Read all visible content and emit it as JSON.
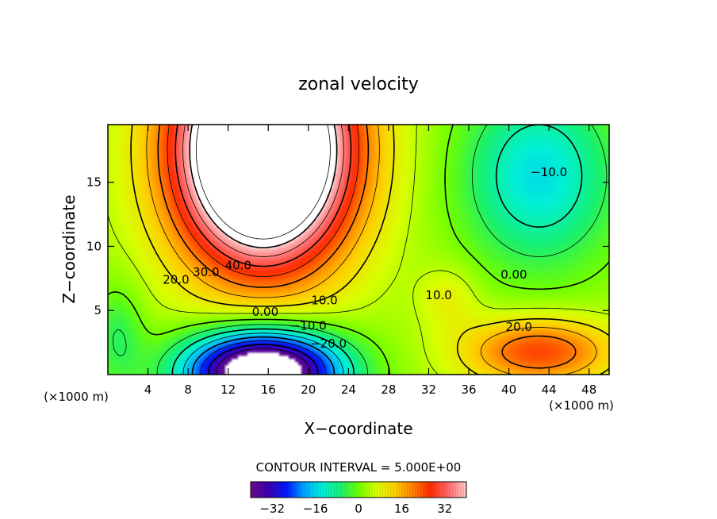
{
  "chart_data": {
    "type": "heatmap",
    "title": "zonal velocity",
    "xlabel": "X−coordinate",
    "ylabel": "Z−coordinate",
    "x_unit_left": "(×1000 m)",
    "x_unit_right": "(×1000 m)",
    "xlim": [
      0,
      50
    ],
    "ylim": [
      0,
      19.5
    ],
    "x_ticks": [
      4,
      8,
      12,
      16,
      20,
      24,
      28,
      32,
      36,
      40,
      44,
      48
    ],
    "y_ticks": [
      5,
      10,
      15
    ],
    "x_tick_labels": [
      "4",
      "8",
      "12",
      "16",
      "20",
      "24",
      "28",
      "32",
      "36",
      "40",
      "44",
      "48"
    ],
    "y_tick_labels": [
      "5",
      "10",
      "15"
    ],
    "contour_interval_text": "CONTOUR INTERVAL = 5.000E+00",
    "contour_interval": 5,
    "contour_labels": [
      {
        "text": "40.0",
        "x": 13.0,
        "y": 8.5
      },
      {
        "text": "30.0",
        "x": 9.8,
        "y": 8.0
      },
      {
        "text": "20.0",
        "x": 6.8,
        "y": 7.4
      },
      {
        "text": "10.0",
        "x": 21.6,
        "y": 5.8
      },
      {
        "text": "0.00",
        "x": 15.7,
        "y": 4.9
      },
      {
        "text": "−10.0",
        "x": 20.0,
        "y": 3.8
      },
      {
        "text": "−20.0",
        "x": 22.0,
        "y": 2.4
      },
      {
        "text": "10.0",
        "x": 33.0,
        "y": 6.2
      },
      {
        "text": "20.0",
        "x": 41.0,
        "y": 3.7
      },
      {
        "text": "0.00",
        "x": 40.5,
        "y": 7.8
      },
      {
        "text": "−10.0",
        "x": 44.0,
        "y": 15.8
      }
    ],
    "features": [
      {
        "kind": "jet-max",
        "center": [
          15.5,
          16.5
        ],
        "peak": 60
      },
      {
        "kind": "jet-min",
        "center": [
          15.5,
          0.5
        ],
        "peak": -40
      },
      {
        "kind": "low-level-max",
        "center": [
          43,
          2.0
        ],
        "peak": 25
      },
      {
        "kind": "upper-min",
        "center": [
          43,
          15.5
        ],
        "peak": -14
      }
    ],
    "colorbar": {
      "min": -40,
      "max": 40,
      "tick_values": [
        -32,
        -16,
        0,
        16,
        32
      ],
      "tick_labels": [
        "−32",
        "−16",
        "0",
        "16",
        "32"
      ],
      "colors": [
        "#6a0a8a",
        "#3b00b0",
        "#0018ff",
        "#00a8ff",
        "#00f0d8",
        "#18f070",
        "#70ff00",
        "#d8ff00",
        "#ffd000",
        "#ff8000",
        "#ff2a00",
        "#ff6a6a",
        "#ffc8c8"
      ]
    }
  }
}
